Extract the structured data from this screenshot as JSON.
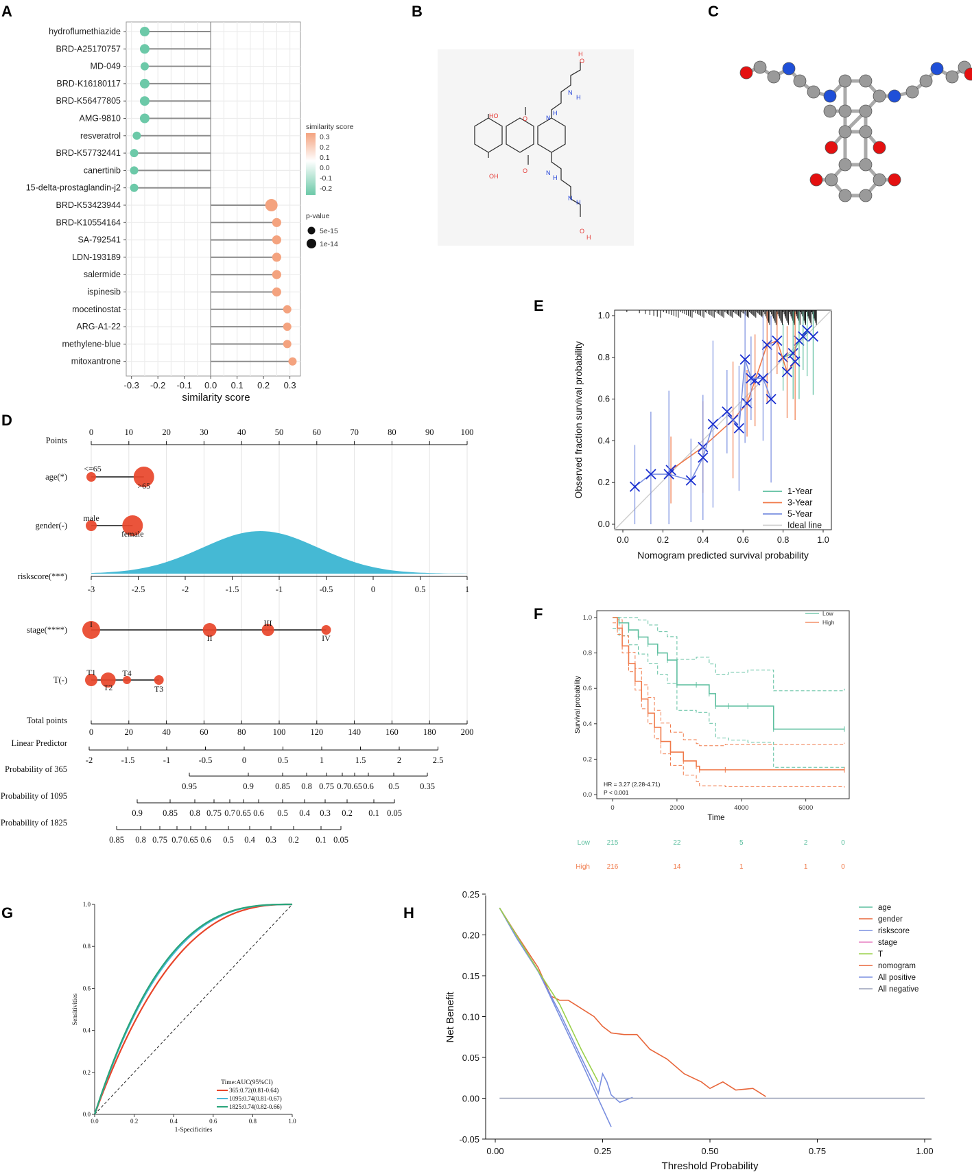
{
  "panel_labels": {
    "a": "A",
    "b": "B",
    "c": "C",
    "d": "D",
    "e": "E",
    "f": "F",
    "g": "G",
    "h": "H"
  },
  "colors": {
    "positive": "#f4a37f",
    "negative": "#6cc9a8",
    "teal": "#5dbf9f",
    "orange": "#f07a4a",
    "blue": "#7a8fe0",
    "red": "#e8452a",
    "cyan": "#45b9d4",
    "dark_blue": "#1a2fd0"
  },
  "molecule_labels": [
    "H",
    "O",
    "H",
    "N",
    "HO",
    "O",
    "N",
    "H",
    "OH",
    "O",
    "N",
    "H",
    "N",
    "H",
    "O",
    "H"
  ],
  "chart_data": [
    {
      "id": "A",
      "type": "lollipop",
      "xlabel": "similarity score",
      "xlim": [
        -0.32,
        0.34
      ],
      "xticks": [
        "-0.3",
        "-0.2",
        "-0.1",
        "0.0",
        "0.1",
        "0.2",
        "0.3"
      ],
      "categories": [
        "hydroflumethiazide",
        "BRD-A25170757",
        "MD-049",
        "BRD-K16180117",
        "BRD-K56477805",
        "AMG-9810",
        "resveratrol",
        "BRD-K57732441",
        "canertinib",
        "15-delta-prostaglandin-j2",
        "BRD-K53423944",
        "BRD-K10554164",
        "SA-792541",
        "LDN-193189",
        "salermide",
        "ispinesib",
        "mocetinostat",
        "ARG-A1-22",
        "methylene-blue",
        "mitoxantrone"
      ],
      "values": [
        -0.25,
        -0.25,
        -0.25,
        -0.25,
        -0.25,
        -0.25,
        -0.28,
        -0.29,
        -0.29,
        -0.29,
        0.23,
        0.25,
        0.25,
        0.25,
        0.25,
        0.25,
        0.29,
        0.29,
        0.29,
        0.31
      ],
      "pvalue_level": [
        1.5,
        1.5,
        1,
        1.5,
        1.5,
        1.5,
        1,
        1,
        1,
        1,
        2.5,
        1.3,
        1.3,
        1.3,
        1.3,
        1.3,
        1,
        1,
        1,
        1
      ],
      "legend": {
        "color_title": "similarity score",
        "color_ticks": [
          "0.3",
          "0.2",
          "0.1",
          "0.0",
          "-0.1",
          "-0.2"
        ],
        "size_title": "p-value",
        "size_labels": [
          "5e-15",
          "1e-14"
        ]
      }
    },
    {
      "id": "D",
      "type": "nomogram",
      "rows": [
        {
          "label": "Points",
          "ticks": [
            "0",
            "10",
            "20",
            "30",
            "40",
            "50",
            "60",
            "70",
            "80",
            "90",
            "100"
          ],
          "from": 0,
          "to": 100,
          "step": 10
        },
        {
          "label": "age(*)",
          "levels": [
            "<=65",
            ">65"
          ],
          "level_points": [
            0,
            14
          ]
        },
        {
          "label": "gender(-)",
          "levels": [
            "male",
            "female"
          ],
          "level_points": [
            0,
            11
          ]
        },
        {
          "label": "riskscore(***)",
          "ticks": [
            "-3",
            "-2.5",
            "-2",
            "-1.5",
            "-1",
            "-0.5",
            "0",
            "0.5",
            "1"
          ],
          "from": -3,
          "to": 1,
          "density_peak": -1.2
        },
        {
          "label": "stage(****)",
          "levels": [
            "I",
            "II",
            "III",
            "IV"
          ],
          "level_points": [
            0,
            31.5,
            47,
            62.5
          ]
        },
        {
          "label": "T(-)",
          "levels": [
            "T1",
            "T2",
            "T4",
            "T3"
          ],
          "level_points": [
            0,
            4.5,
            9.5,
            18
          ]
        },
        {
          "label": "Total points",
          "ticks": [
            "0",
            "20",
            "40",
            "60",
            "80",
            "100",
            "120",
            "140",
            "160",
            "180",
            "200"
          ],
          "from": 0,
          "to": 200
        },
        {
          "label": "Linear Predictor",
          "ticks": [
            "-2",
            "-1.5",
            "-1",
            "-0.5",
            "0",
            "0.5",
            "1",
            "1.5",
            "2",
            "2.5"
          ],
          "from": -2,
          "to": 2.5
        },
        {
          "label": "Probability of 365",
          "ticks": [
            "0.95",
            "0.9",
            "0.85",
            "0.8",
            "0.75",
            "0.7",
            "0.65",
            "0.6",
            "0.5",
            "0.35"
          ]
        },
        {
          "label": "Probability of 1095",
          "ticks": [
            "0.9",
            "0.85",
            "0.8",
            "0.75",
            "0.7",
            "0.65",
            "0.6",
            "0.5",
            "0.4",
            "0.3",
            "0.2",
            "0.1",
            "0.05"
          ]
        },
        {
          "label": "Probability of 1825",
          "ticks": [
            "0.85",
            "0.8",
            "0.75",
            "0.7",
            "0.65",
            "0.6",
            "0.5",
            "0.4",
            "0.3",
            "0.2",
            "0.1",
            "0.05"
          ]
        }
      ]
    },
    {
      "id": "E",
      "type": "line",
      "xlabel": "Nomogram predicted survival probability",
      "ylabel": "Observed fraction survival probability",
      "xlim": [
        0,
        1
      ],
      "ylim": [
        0,
        1
      ],
      "xticks": [
        "0.0",
        "0.2",
        "0.4",
        "0.6",
        "0.8",
        "1.0"
      ],
      "yticks": [
        "0.0",
        "0.2",
        "0.4",
        "0.6",
        "0.8",
        "1.0"
      ],
      "legend": [
        "1-Year",
        "3-Year",
        "5-Year",
        "Ideal line"
      ],
      "series": [
        {
          "name": "1-Year",
          "x": [
            0.8,
            0.85,
            0.88,
            0.9,
            0.92,
            0.95
          ],
          "y": [
            0.8,
            0.82,
            0.88,
            0.9,
            0.93,
            0.9
          ]
        },
        {
          "name": "3-Year",
          "x": [
            0.24,
            0.4,
            0.55,
            0.62,
            0.66,
            0.72,
            0.77,
            0.82,
            0.86
          ],
          "y": [
            0.26,
            0.37,
            0.5,
            0.58,
            0.69,
            0.86,
            0.88,
            0.73,
            0.78
          ]
        },
        {
          "name": "5-Year",
          "x": [
            0.06,
            0.14,
            0.23,
            0.34,
            0.4,
            0.45,
            0.52,
            0.58,
            0.61,
            0.64,
            0.7,
            0.74
          ],
          "y": [
            0.18,
            0.24,
            0.24,
            0.21,
            0.32,
            0.48,
            0.54,
            0.46,
            0.79,
            0.7,
            0.7,
            0.6
          ]
        }
      ]
    },
    {
      "id": "F",
      "type": "line",
      "title": "",
      "xlabel": "Time",
      "ylabel": "Survival probability",
      "xlim": [
        0,
        7200
      ],
      "ylim": [
        0,
        1.0
      ],
      "xticks": [
        "0",
        "2000",
        "4000",
        "6000"
      ],
      "yticks": [
        "0.0",
        "0.2",
        "0.4",
        "0.6",
        "0.8",
        "1.0"
      ],
      "legend": [
        "Low",
        "High"
      ],
      "annotation": [
        "HR = 3.27 (2.28-4.71)",
        "P < 0.001"
      ],
      "series": [
        {
          "name": "Low",
          "x": [
            0,
            200,
            500,
            800,
            1100,
            1400,
            1700,
            2000,
            2600,
            3000,
            3200,
            3600,
            4200,
            5000,
            7200
          ],
          "y": [
            1.0,
            0.97,
            0.93,
            0.89,
            0.85,
            0.8,
            0.76,
            0.62,
            0.62,
            0.57,
            0.5,
            0.5,
            0.5,
            0.37,
            0.37
          ]
        },
        {
          "name": "High",
          "x": [
            0,
            150,
            300,
            500,
            700,
            900,
            1100,
            1300,
            1500,
            1800,
            2200,
            2600,
            2700,
            3500,
            7200
          ],
          "y": [
            1.0,
            0.94,
            0.84,
            0.74,
            0.64,
            0.54,
            0.46,
            0.38,
            0.3,
            0.24,
            0.19,
            0.16,
            0.14,
            0.14,
            0.14
          ]
        }
      ],
      "risk_table": {
        "rows": [
          {
            "name": "Low",
            "values": [
              "215",
              "22",
              "5",
              "2",
              "0"
            ]
          },
          {
            "name": "High",
            "values": [
              "216",
              "14",
              "1",
              "1",
              "0"
            ]
          }
        ]
      }
    },
    {
      "id": "G",
      "type": "line",
      "xlabel": "1-Specificities",
      "ylabel": "Sensitivities",
      "xlim": [
        0,
        1
      ],
      "ylim": [
        0,
        1
      ],
      "xticks": [
        "0.0",
        "0.2",
        "0.4",
        "0.6",
        "0.8",
        "1.0"
      ],
      "yticks": [
        "0.0",
        "0.2",
        "0.4",
        "0.6",
        "0.8",
        "1.0"
      ],
      "legend_title": "Time:AUC(95%CI)",
      "series": [
        {
          "name": "365:0.72(0.81-0.64)",
          "auc": 0.72
        },
        {
          "name": "1095:0.74(0.81-0.67)",
          "auc": 0.74
        },
        {
          "name": "1825:0.74(0.82-0.66)",
          "auc": 0.745
        }
      ]
    },
    {
      "id": "H",
      "type": "line",
      "xlabel": "Threshold Probability",
      "ylabel": "Net Benefit",
      "xlim": [
        0,
        1
      ],
      "ylim": [
        -0.05,
        0.25
      ],
      "xticks": [
        "0.00",
        "0.25",
        "0.50",
        "0.75",
        "1.00"
      ],
      "yticks": [
        "-0.05",
        "0.00",
        "0.05",
        "0.10",
        "0.15",
        "0.20",
        "0.25"
      ],
      "legend": [
        "age",
        "gender",
        "riskscore",
        "stage",
        "T",
        "nomogram",
        "All positive",
        "All negative"
      ],
      "series": [
        {
          "name": "nomogram",
          "x": [
            0.01,
            0.05,
            0.1,
            0.13,
            0.15,
            0.17,
            0.2,
            0.23,
            0.25,
            0.27,
            0.3,
            0.33,
            0.36,
            0.4,
            0.44,
            0.48,
            0.5,
            0.53,
            0.56,
            0.6,
            0.63
          ],
          "y": [
            0.233,
            0.2,
            0.16,
            0.125,
            0.12,
            0.12,
            0.11,
            0.1,
            0.088,
            0.08,
            0.078,
            0.078,
            0.06,
            0.048,
            0.03,
            0.02,
            0.012,
            0.02,
            0.01,
            0.012,
            0.002
          ]
        },
        {
          "name": "riskscore",
          "x": [
            0.01,
            0.05,
            0.1,
            0.15,
            0.2,
            0.23,
            0.24,
            0.25,
            0.26,
            0.27,
            0.29,
            0.32
          ],
          "y": [
            0.233,
            0.196,
            0.155,
            0.105,
            0.05,
            0.018,
            0.006,
            0.03,
            0.02,
            0.004,
            -0.005,
            0.001
          ]
        },
        {
          "name": "All positive",
          "x": [
            0.01,
            0.1,
            0.2,
            0.27
          ],
          "y": [
            0.233,
            0.156,
            0.045,
            -0.035
          ]
        },
        {
          "name": "T",
          "x": [
            0.01,
            0.1,
            0.15,
            0.2,
            0.24
          ],
          "y": [
            0.233,
            0.156,
            0.115,
            0.06,
            0.02
          ]
        },
        {
          "name": "All negative",
          "x": [
            0.01,
            1.0
          ],
          "y": [
            0,
            0
          ]
        }
      ]
    }
  ]
}
